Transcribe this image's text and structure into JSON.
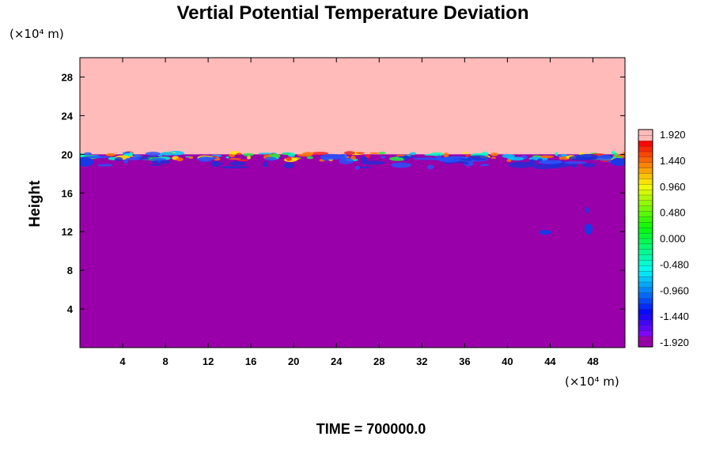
{
  "chart_data": {
    "type": "heatmap",
    "title": "Vertial Potential Temperature Deviation",
    "xlabel": "",
    "ylabel": "Height",
    "x_unit": "(×10⁴ m)",
    "y_unit": "(×10⁴ m)",
    "x_ticks": [
      "4",
      "8",
      "12",
      "16",
      "20",
      "24",
      "28",
      "32",
      "36",
      "40",
      "44",
      "48"
    ],
    "y_ticks": [
      "4",
      "8",
      "12",
      "16",
      "20",
      "24",
      "28"
    ],
    "xlim": [
      0,
      51
    ],
    "ylim": [
      0,
      30
    ],
    "boundary_height": 20,
    "upper_region_value": 2.0,
    "lower_region_value": -2.0,
    "colors": {
      "upper_region": "#ffbaba",
      "lower_region": "#9900aa"
    },
    "colorbar": {
      "ticks": [
        "1.920",
        "1.440",
        "0.960",
        "0.480",
        "0.000",
        "-0.480",
        "-0.960",
        "-1.440",
        "-1.920"
      ],
      "range": [
        -1.92,
        1.92
      ]
    },
    "footer": "TIME = 700000.0"
  }
}
